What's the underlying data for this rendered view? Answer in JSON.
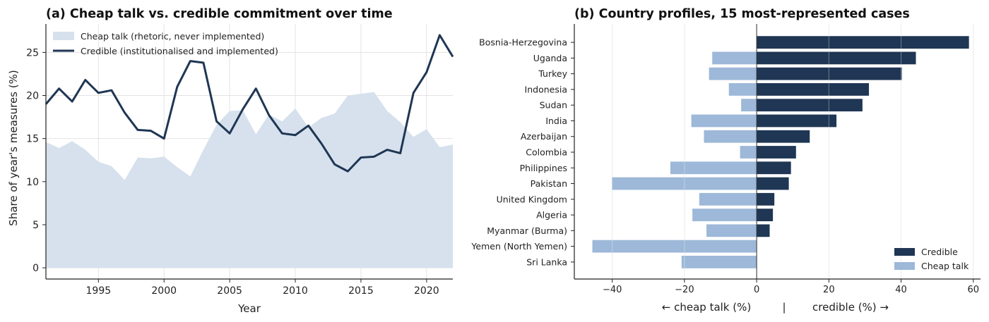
{
  "colors": {
    "credible": "#1f3654",
    "cheap_talk_area": "#d6e1ed",
    "cheap_talk_bar": "#9db8d8",
    "grid": "#e3e3e3"
  },
  "chart_data": [
    {
      "type": "line",
      "title": "(a) Cheap talk vs. credible commitment over time",
      "xlabel": "Year",
      "ylabel": "Share of year's measures (%)",
      "xlim": [
        1991,
        2022
      ],
      "ylim": [
        -1.3,
        28.3
      ],
      "xticks": [
        1995,
        2000,
        2005,
        2010,
        2015,
        2020
      ],
      "yticks": [
        0,
        5,
        10,
        15,
        20,
        25
      ],
      "grid": true,
      "legend_position": "top-left",
      "x": [
        1991,
        1992,
        1993,
        1994,
        1995,
        1996,
        1997,
        1998,
        1999,
        2000,
        2001,
        2002,
        2003,
        2004,
        2005,
        2006,
        2007,
        2008,
        2009,
        2010,
        2011,
        2012,
        2013,
        2014,
        2015,
        2016,
        2017,
        2018,
        2019,
        2020,
        2021,
        2022
      ],
      "series": [
        {
          "name": "Cheap talk (rhetoric, never implemented)",
          "style": "area",
          "values": [
            14.6,
            13.9,
            14.7,
            13.7,
            12.3,
            11.8,
            10.2,
            12.8,
            12.7,
            12.9,
            11.7,
            10.6,
            13.7,
            16.6,
            18.2,
            18.3,
            15.5,
            17.8,
            17.0,
            18.5,
            16.3,
            17.4,
            17.9,
            20.0,
            20.2,
            20.4,
            18.2,
            16.9,
            15.2,
            16.1,
            14.0,
            14.3
          ]
        },
        {
          "name": "Credible (institutionalised and implemented)",
          "style": "line",
          "values": [
            19.0,
            20.8,
            19.3,
            21.8,
            20.3,
            20.6,
            18.0,
            16.0,
            15.9,
            15.0,
            21.0,
            24.0,
            23.8,
            17.0,
            15.6,
            18.4,
            20.8,
            17.7,
            15.6,
            15.4,
            16.5,
            14.4,
            12.0,
            11.2,
            12.8,
            12.9,
            13.7,
            13.3,
            20.3,
            22.7,
            27.0,
            24.5
          ]
        }
      ]
    },
    {
      "type": "bar",
      "orientation": "horizontal",
      "title": "(b) Country profiles, 15 most-represented cases",
      "xlabel_left": "← cheap talk (%)",
      "xlabel_sep": "|",
      "xlabel_right": "credible (%) →",
      "xlim": [
        -50.5,
        62
      ],
      "xticks": [
        -40,
        -20,
        0,
        20,
        40,
        60
      ],
      "grid": true,
      "legend_position": "bottom-right",
      "categories": [
        "Bosnia-Herzegovina",
        "Uganda",
        "Turkey",
        "Indonesia",
        "Sudan",
        "India",
        "Azerbaijan",
        "Colombia",
        "Philippines",
        "Pakistan",
        "United Kingdom",
        "Algeria",
        "Myanmar (Burma)",
        "Yemen (North Yemen)",
        "Sri Lanka"
      ],
      "series": [
        {
          "name": "Credible",
          "values": [
            58.8,
            44.1,
            40.2,
            31.1,
            29.3,
            22.1,
            14.7,
            10.9,
            9.5,
            8.9,
            4.9,
            4.5,
            3.6,
            0,
            0
          ]
        },
        {
          "name": "Cheap talk",
          "values": [
            0,
            -12.3,
            -13.2,
            -7.7,
            -4.3,
            -18.1,
            -14.6,
            -4.6,
            -23.9,
            -40.1,
            -15.9,
            -17.8,
            -13.9,
            -45.5,
            -20.8
          ]
        }
      ]
    }
  ]
}
